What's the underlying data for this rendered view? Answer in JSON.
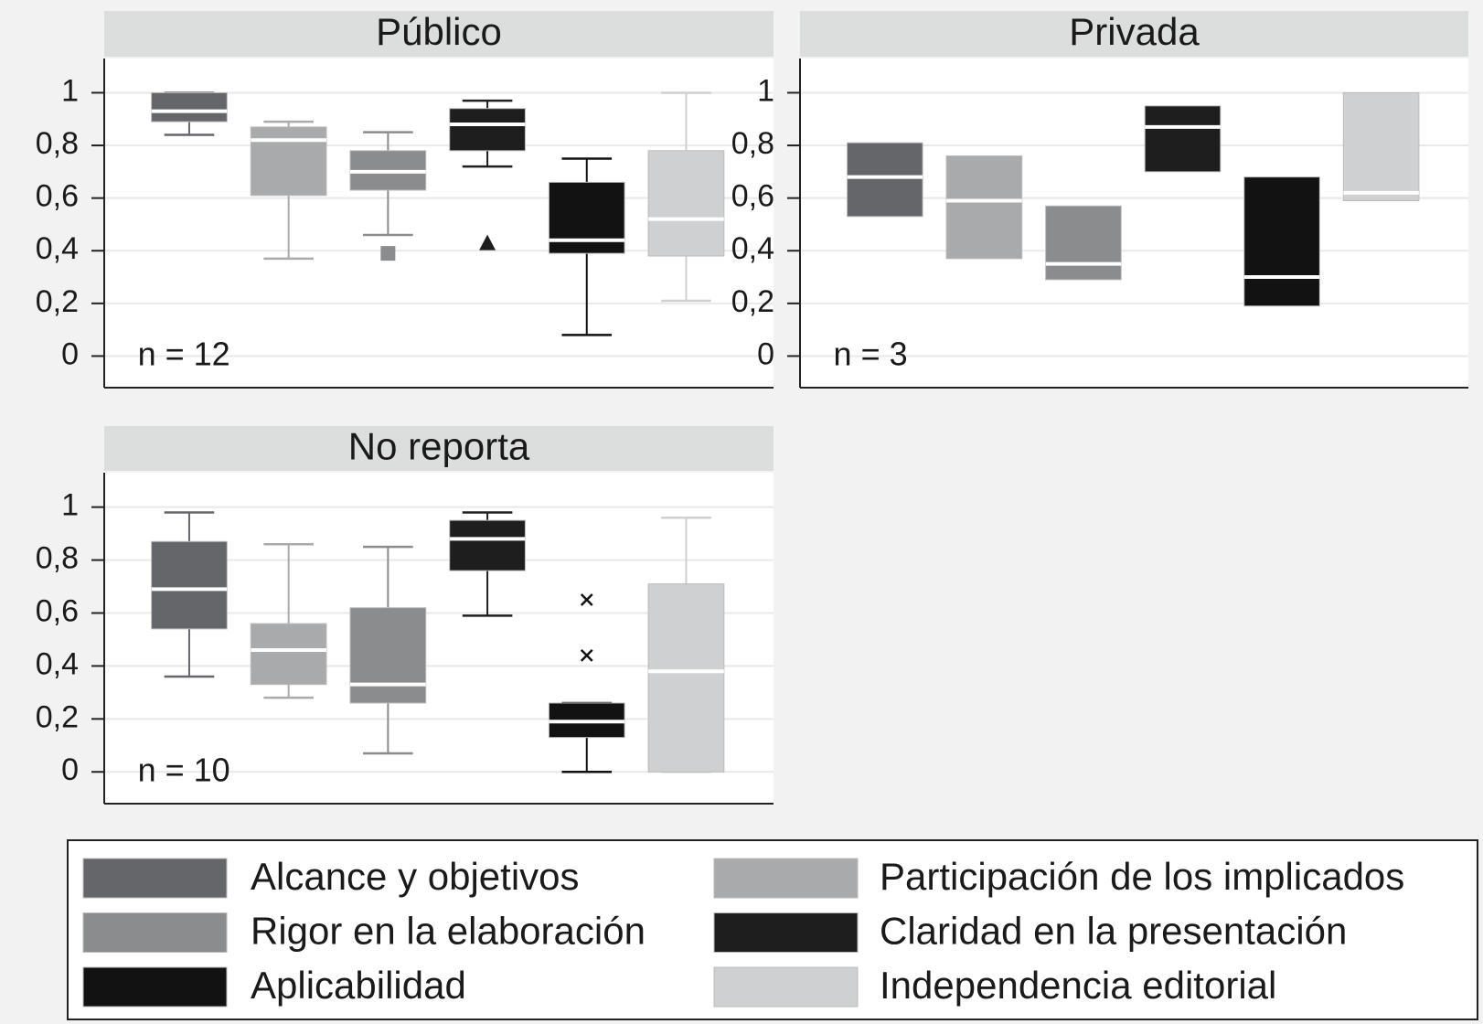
{
  "chart_data": {
    "type": "box",
    "ylim": [
      -0.12,
      1.13
    ],
    "yticks": [
      0,
      {
        "value": 0.2,
        "label": "0,2"
      },
      {
        "value": 0.4,
        "label": "0,4"
      },
      {
        "value": 0.6,
        "label": "0,6"
      },
      {
        "value": 0.8,
        "label": "0,8"
      },
      1
    ],
    "grid": true,
    "series": [
      {
        "name": "Alcance y objetivos",
        "color": "#65666a"
      },
      {
        "name": "Participación de los implicados",
        "color": "#a9aaab"
      },
      {
        "name": "Rigor en la elaboración",
        "color": "#8b8c8e"
      },
      {
        "name": "Claridad en la presentación",
        "color": "#1f1e1f"
      },
      {
        "name": "Aplicabilidad",
        "color": "#121212"
      },
      {
        "name": "Independencia editorial",
        "color": "#cfd0d1"
      }
    ],
    "panels": [
      {
        "title": "Público",
        "note": "n = 12",
        "boxes": [
          {
            "whislo": 0.84,
            "q1": 0.89,
            "med": 0.93,
            "q3": 1.0,
            "whishi": 1.0
          },
          {
            "whislo": 0.37,
            "q1": 0.61,
            "med": 0.82,
            "q3": 0.87,
            "whishi": 0.89
          },
          {
            "whislo": 0.46,
            "q1": 0.63,
            "med": 0.7,
            "q3": 0.78,
            "whishi": 0.85,
            "fliers": [
              {
                "value": 0.39,
                "marker": "square"
              }
            ]
          },
          {
            "whislo": 0.72,
            "q1": 0.78,
            "med": 0.88,
            "q3": 0.94,
            "whishi": 0.97,
            "fliers": [
              {
                "value": 0.43,
                "marker": "triangle"
              }
            ]
          },
          {
            "whislo": 0.08,
            "q1": 0.39,
            "med": 0.44,
            "q3": 0.66,
            "whishi": 0.75
          },
          {
            "whislo": 0.21,
            "q1": 0.38,
            "med": 0.52,
            "q3": 0.78,
            "whishi": 1.0
          }
        ]
      },
      {
        "title": "Privada",
        "note": "n = 3",
        "boxes": [
          {
            "q1": 0.53,
            "med": 0.68,
            "q3": 0.81
          },
          {
            "q1": 0.37,
            "med": 0.59,
            "q3": 0.76
          },
          {
            "q1": 0.29,
            "med": 0.35,
            "q3": 0.57
          },
          {
            "q1": 0.7,
            "med": 0.87,
            "q3": 0.95
          },
          {
            "q1": 0.19,
            "med": 0.3,
            "q3": 0.68
          },
          {
            "q1": 0.59,
            "med": 0.62,
            "q3": 1.0
          }
        ]
      },
      {
        "title": "No reporta",
        "note": "n = 10",
        "boxes": [
          {
            "whislo": 0.36,
            "q1": 0.54,
            "med": 0.69,
            "q3": 0.87,
            "whishi": 0.98
          },
          {
            "whislo": 0.28,
            "q1": 0.33,
            "med": 0.46,
            "q3": 0.56,
            "whishi": 0.86
          },
          {
            "whislo": 0.07,
            "q1": 0.26,
            "med": 0.33,
            "q3": 0.62,
            "whishi": 0.85
          },
          {
            "whislo": 0.59,
            "q1": 0.76,
            "med": 0.88,
            "q3": 0.95,
            "whishi": 0.98
          },
          {
            "whislo": 0,
            "q1": 0.13,
            "med": 0.19,
            "q3": 0.26,
            "whishi": 0.26,
            "fliers": [
              {
                "value": 0.65,
                "marker": "x"
              },
              {
                "value": 0.44,
                "marker": "x"
              }
            ]
          },
          {
            "whislo": 0,
            "q1": 0,
            "med": 0.38,
            "q3": 0.71,
            "whishi": 0.96
          }
        ]
      }
    ]
  }
}
